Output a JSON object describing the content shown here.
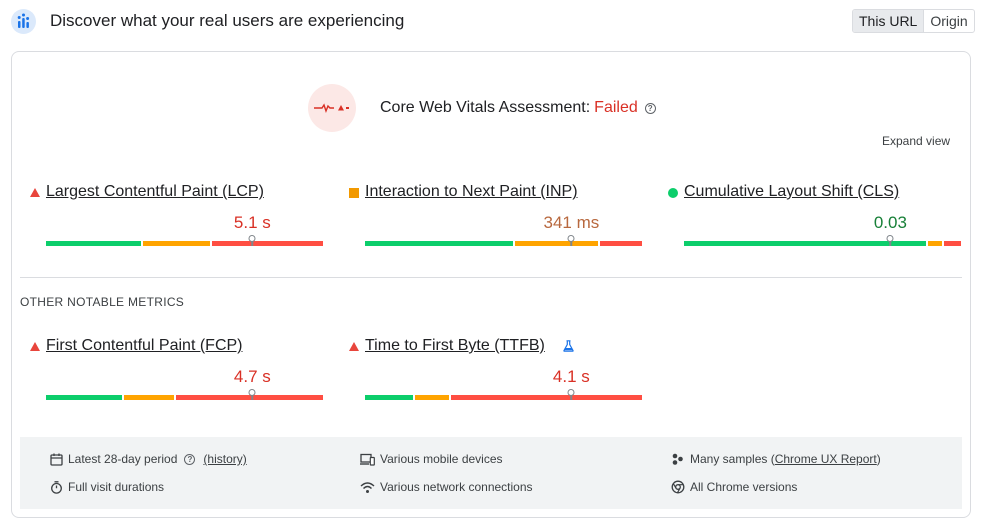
{
  "header": {
    "title": "Discover what your real users are experiencing",
    "toggle": [
      "This URL",
      "Origin"
    ],
    "logo_icon": "crux-chart-icon"
  },
  "assessment": {
    "label": "Core Web Vitals Assessment:",
    "status": "Failed",
    "status_color": "#d93025",
    "help_icon": "?",
    "expand_label": "Expand view"
  },
  "core_metrics": [
    {
      "name": "Largest Contentful Paint (LCP)",
      "value": "5.1 s",
      "rating": "poor",
      "color": "#d93025",
      "distribution": [
        0.35,
        0.25,
        0.4
      ],
      "marker": 0.745
    },
    {
      "name": "Interaction to Next Paint (INP)",
      "value": "341 ms",
      "rating": "needs-improvement",
      "color": "#b8683e",
      "distribution": [
        0.54,
        0.31,
        0.15
      ],
      "marker": 0.745
    },
    {
      "name": "Cumulative Layout Shift (CLS)",
      "value": "0.03",
      "rating": "good",
      "color": "#188038",
      "distribution": [
        0.88,
        0.06,
        0.06
      ],
      "marker": 0.745
    }
  ],
  "other_section": {
    "title": "OTHER NOTABLE METRICS"
  },
  "other_metrics": [
    {
      "name": "First Contentful Paint (FCP)",
      "value": "4.7 s",
      "rating": "poor",
      "color": "#d93025",
      "distribution": [
        0.28,
        0.19,
        0.53
      ],
      "marker": 0.745
    },
    {
      "name": "Time to First Byte (TTFB)",
      "value": "4.1 s",
      "rating": "poor",
      "color": "#d93025",
      "distribution": [
        0.18,
        0.13,
        0.69
      ],
      "marker": 0.745,
      "experimental_icon": "flask-icon"
    }
  ],
  "footer": {
    "period": "Latest 28-day period",
    "history": "(history)",
    "durations": "Full visit durations",
    "devices": "Various mobile devices",
    "connections": "Various network connections",
    "samples_prefix": "Many samples (",
    "samples_link": "Chrome UX Report",
    "samples_suffix": ")",
    "versions": "All Chrome versions"
  },
  "colors": {
    "good": "#0cce6b",
    "needs_improvement": "#ffa400",
    "poor": "#ff4e42"
  }
}
